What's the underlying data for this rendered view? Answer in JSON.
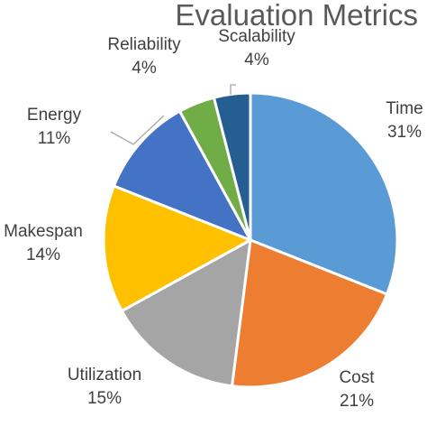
{
  "chart_data": {
    "type": "pie",
    "title": "Evaluation Metrics",
    "slices": [
      {
        "label": "Time",
        "value": 31,
        "value_label": "31%",
        "color": "#5B9BD5"
      },
      {
        "label": "Cost",
        "value": 21,
        "value_label": "21%",
        "color": "#ED7D31"
      },
      {
        "label": "Utilization",
        "value": 15,
        "value_label": "15%",
        "color": "#A5A5A5"
      },
      {
        "label": "Makespan",
        "value": 14,
        "value_label": "14%",
        "color": "#FFC000"
      },
      {
        "label": "Energy",
        "value": 11,
        "value_label": "11%",
        "color": "#4472C4"
      },
      {
        "label": "Reliability",
        "value": 4,
        "value_label": "4%",
        "color": "#70AD47"
      },
      {
        "label": "Scalability",
        "value": 4,
        "value_label": "4%",
        "color": "#255E91"
      }
    ],
    "start_angle": "12 o'clock",
    "direction": "clockwise",
    "legend": "none",
    "data_labels": "outside with category name and percentage"
  }
}
